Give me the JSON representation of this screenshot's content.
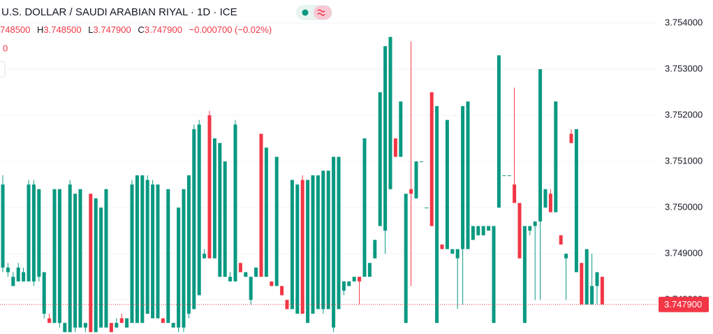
{
  "chart_data": {
    "type": "candlestick",
    "title": "U.S. DOLLAR / SAUDI ARABIAN RIYAL · 1D · ICE",
    "legend": {
      "open_value": "748500",
      "items": [
        {
          "key": "H",
          "value": "3.748500"
        },
        {
          "key": "L",
          "value": "3.747900"
        },
        {
          "key": "C",
          "value": "3.747900"
        }
      ],
      "change": "−0.000700 (−0.02%)",
      "volume": "0"
    },
    "up_color": "#089981",
    "down_color": "#f23645",
    "ylim": [
      3.74726,
      3.7545
    ],
    "yticks": [
      {
        "value": 3.748,
        "label": "3.748000"
      },
      {
        "value": 3.749,
        "label": "3.749000"
      },
      {
        "value": 3.75,
        "label": "3.750000"
      },
      {
        "value": 3.751,
        "label": "3.751000"
      },
      {
        "value": 3.752,
        "label": "3.752000"
      },
      {
        "value": 3.753,
        "label": "3.753000"
      },
      {
        "value": 3.754,
        "label": "3.754000"
      }
    ],
    "grid": true,
    "last_price": {
      "value": 3.7479,
      "label": "3.747900"
    },
    "open": [
      3.7487,
      3.7486,
      3.7483,
      3.7484,
      3.7484,
      3.7484,
      3.7484,
      3.7485,
      3.7477,
      3.7476,
      3.7475,
      3.7475,
      3.7473,
      3.7473,
      3.7474,
      3.7474,
      3.7474,
      3.7503,
      3.7473,
      3.7474,
      3.7474,
      3.7475,
      3.7474,
      3.7476,
      3.7474,
      3.7475,
      3.7475,
      3.7475,
      3.7477,
      3.7476,
      3.7476,
      3.7476,
      3.7475,
      3.7474,
      3.7474,
      3.7474,
      3.7477,
      3.7478,
      3.7481,
      3.7489,
      3.752,
      3.7489,
      3.7485,
      3.7485,
      3.7484,
      3.7484,
      3.7488,
      3.7485,
      3.748,
      3.7485,
      3.7516,
      3.7485,
      3.7484,
      3.7483,
      3.7483,
      3.748,
      3.7478,
      3.7477,
      3.7506,
      3.7475,
      3.7477,
      3.7478,
      3.7478,
      3.7478,
      3.7474,
      3.7478,
      3.7482,
      3.7483,
      3.7484,
      3.7485,
      3.7485,
      3.7485,
      3.7489,
      3.7496,
      3.7495,
      3.7504,
      3.7515,
      3.7511,
      3.7475,
      3.7504,
      3.7502,
      3.751,
      3.75,
      3.7525,
      3.7475,
      3.7492,
      3.7491,
      3.749,
      3.7489,
      3.7491,
      3.7491,
      3.7493,
      3.7494,
      3.7494,
      3.7495,
      3.7475,
      3.75,
      3.7507,
      3.7507,
      3.7505,
      3.7501,
      3.7475,
      3.7495,
      3.7496,
      3.7497,
      3.75,
      3.7503,
      3.7499,
      3.7494,
      3.7489,
      3.7516,
      3.7486,
      3.7488,
      3.7479,
      3.7479,
      3.7483,
      3.7485
    ],
    "high": [
      3.7507,
      3.7488,
      3.7486,
      3.7488,
      3.7487,
      3.7506,
      3.7506,
      3.7504,
      3.7486,
      3.7477,
      3.7504,
      3.7504,
      3.7475,
      3.7506,
      3.7503,
      3.7504,
      3.7475,
      3.7503,
      3.7502,
      3.75,
      3.7504,
      3.7475,
      3.7476,
      3.7477,
      3.7476,
      3.7506,
      3.7507,
      3.7507,
      3.7507,
      3.7506,
      3.7505,
      3.7476,
      3.7504,
      3.7475,
      3.75,
      3.7504,
      3.7507,
      3.7518,
      3.7519,
      3.7491,
      3.7521,
      3.7515,
      3.7514,
      3.751,
      3.7486,
      3.7519,
      3.7488,
      3.7486,
      3.7485,
      3.7487,
      3.7516,
      3.7513,
      3.7484,
      3.7511,
      3.7483,
      3.748,
      3.7506,
      3.7505,
      3.7507,
      3.7506,
      3.7507,
      3.7507,
      3.7508,
      3.7508,
      3.7511,
      3.7511,
      3.7484,
      3.7484,
      3.7485,
      3.7485,
      3.7515,
      3.7488,
      3.7493,
      3.7525,
      3.7535,
      3.7537,
      3.7515,
      3.7523,
      3.7503,
      3.7536,
      3.751,
      3.751,
      3.75,
      3.7525,
      3.7522,
      3.7492,
      3.7519,
      3.7491,
      3.7491,
      3.7522,
      3.7523,
      3.7496,
      3.7496,
      3.7496,
      3.7496,
      3.7496,
      3.7533,
      3.7507,
      3.7507,
      3.7526,
      3.7501,
      3.7496,
      3.7496,
      3.7497,
      3.753,
      3.7504,
      3.7504,
      3.7523,
      3.7494,
      3.749,
      3.7517,
      3.7517,
      3.7488,
      3.7491,
      3.749,
      3.7486,
      3.7485
    ],
    "low": [
      3.7486,
      3.7485,
      3.7483,
      3.7484,
      3.7484,
      3.7484,
      3.7483,
      3.7484,
      3.7476,
      3.7475,
      3.7475,
      3.7474,
      3.7473,
      3.7473,
      3.7473,
      3.7474,
      3.7473,
      3.7473,
      3.7473,
      3.7474,
      3.7474,
      3.7473,
      3.7474,
      3.7475,
      3.7474,
      3.7475,
      3.7475,
      3.7475,
      3.7477,
      3.7476,
      3.7476,
      3.7475,
      3.7475,
      3.7474,
      3.7473,
      3.7473,
      3.7476,
      3.7478,
      3.7481,
      3.7489,
      3.7489,
      3.7489,
      3.7485,
      3.7485,
      3.7484,
      3.7484,
      3.7486,
      3.7485,
      3.7479,
      3.7485,
      3.7485,
      3.7485,
      3.7483,
      3.7483,
      3.7481,
      3.7478,
      3.7478,
      3.7477,
      3.7477,
      3.7475,
      3.7477,
      3.7478,
      3.7477,
      3.7478,
      3.7473,
      3.7478,
      3.7481,
      3.7483,
      3.7484,
      3.7479,
      3.7485,
      3.7485,
      3.7489,
      3.7496,
      3.749,
      3.7504,
      3.7511,
      3.7511,
      3.7475,
      3.7483,
      3.7502,
      3.751,
      3.75,
      3.7496,
      3.7475,
      3.7491,
      3.7491,
      3.749,
      3.7478,
      3.7479,
      3.7491,
      3.7493,
      3.7494,
      3.7494,
      3.7495,
      3.7475,
      3.75,
      3.7507,
      3.7507,
      3.7501,
      3.7489,
      3.7475,
      3.7494,
      3.748,
      3.748,
      3.75,
      3.7499,
      3.7499,
      3.7492,
      3.748,
      3.7514,
      3.7486,
      3.7479,
      3.7479,
      3.7479,
      3.7479,
      3.7479
    ],
    "close": [
      3.7505,
      3.7487,
      3.7485,
      3.7487,
      3.7486,
      3.7505,
      3.7505,
      3.7504,
      3.7486,
      3.7475,
      3.7504,
      3.7504,
      3.7475,
      3.7505,
      3.7503,
      3.7504,
      3.7475,
      3.7473,
      3.7502,
      3.75,
      3.7504,
      3.7473,
      3.7475,
      3.7475,
      3.7476,
      3.7505,
      3.7507,
      3.7507,
      3.7506,
      3.7505,
      3.7505,
      3.7475,
      3.7504,
      3.7475,
      3.75,
      3.7504,
      3.7507,
      3.7517,
      3.7518,
      3.749,
      3.7489,
      3.7515,
      3.7514,
      3.751,
      3.7485,
      3.7518,
      3.7486,
      3.7486,
      3.7485,
      3.7487,
      3.7485,
      3.7513,
      3.7483,
      3.7511,
      3.7481,
      3.7478,
      3.7506,
      3.7505,
      3.7477,
      3.7506,
      3.7507,
      3.7507,
      3.7508,
      3.7508,
      3.7511,
      3.7511,
      3.7484,
      3.7484,
      3.7485,
      3.7484,
      3.7515,
      3.7488,
      3.7493,
      3.7525,
      3.7535,
      3.7537,
      3.7511,
      3.7523,
      3.7503,
      3.7503,
      3.751,
      3.751,
      3.75,
      3.7496,
      3.7522,
      3.7491,
      3.7519,
      3.7491,
      3.7491,
      3.7522,
      3.7523,
      3.7496,
      3.7496,
      3.7496,
      3.7496,
      3.7496,
      3.7533,
      3.7507,
      3.7507,
      3.7501,
      3.7489,
      3.7496,
      3.7496,
      3.7497,
      3.753,
      3.7504,
      3.7499,
      3.7523,
      3.7492,
      3.749,
      3.7514,
      3.7517,
      3.7479,
      3.7491,
      3.7483,
      3.7486,
      3.7479
    ]
  }
}
